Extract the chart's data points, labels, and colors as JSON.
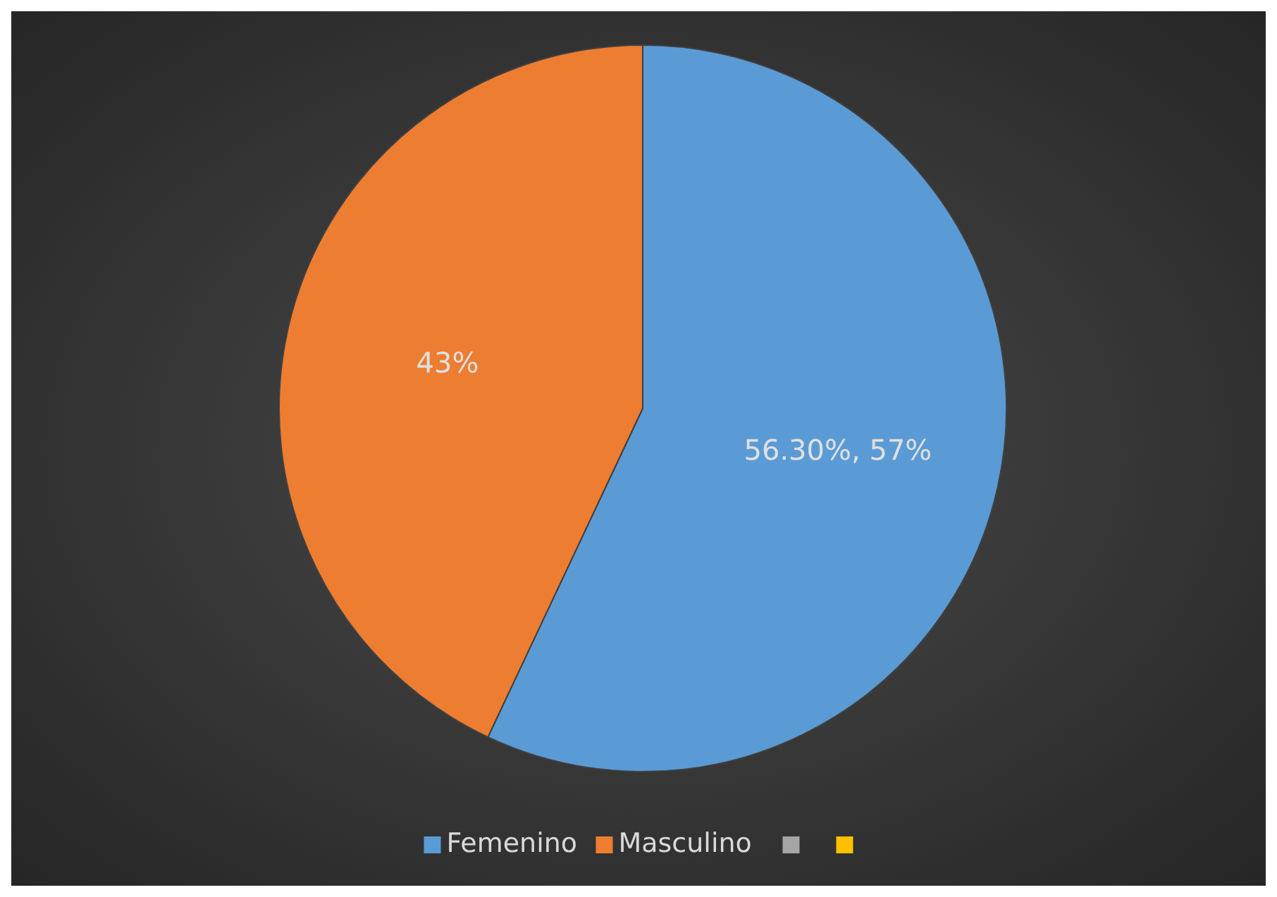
{
  "chart_data": {
    "type": "pie",
    "categories": [
      "Femenino",
      "Masculino",
      null,
      null
    ],
    "values": [
      57,
      43,
      0,
      0
    ],
    "colors": [
      "#5b9bd5",
      "#ed7d31",
      "#a5a5a5",
      "#ffc000"
    ],
    "value_labels": [
      "56.30%, 57%",
      "43%",
      null,
      null
    ],
    "legend": "bottom"
  }
}
